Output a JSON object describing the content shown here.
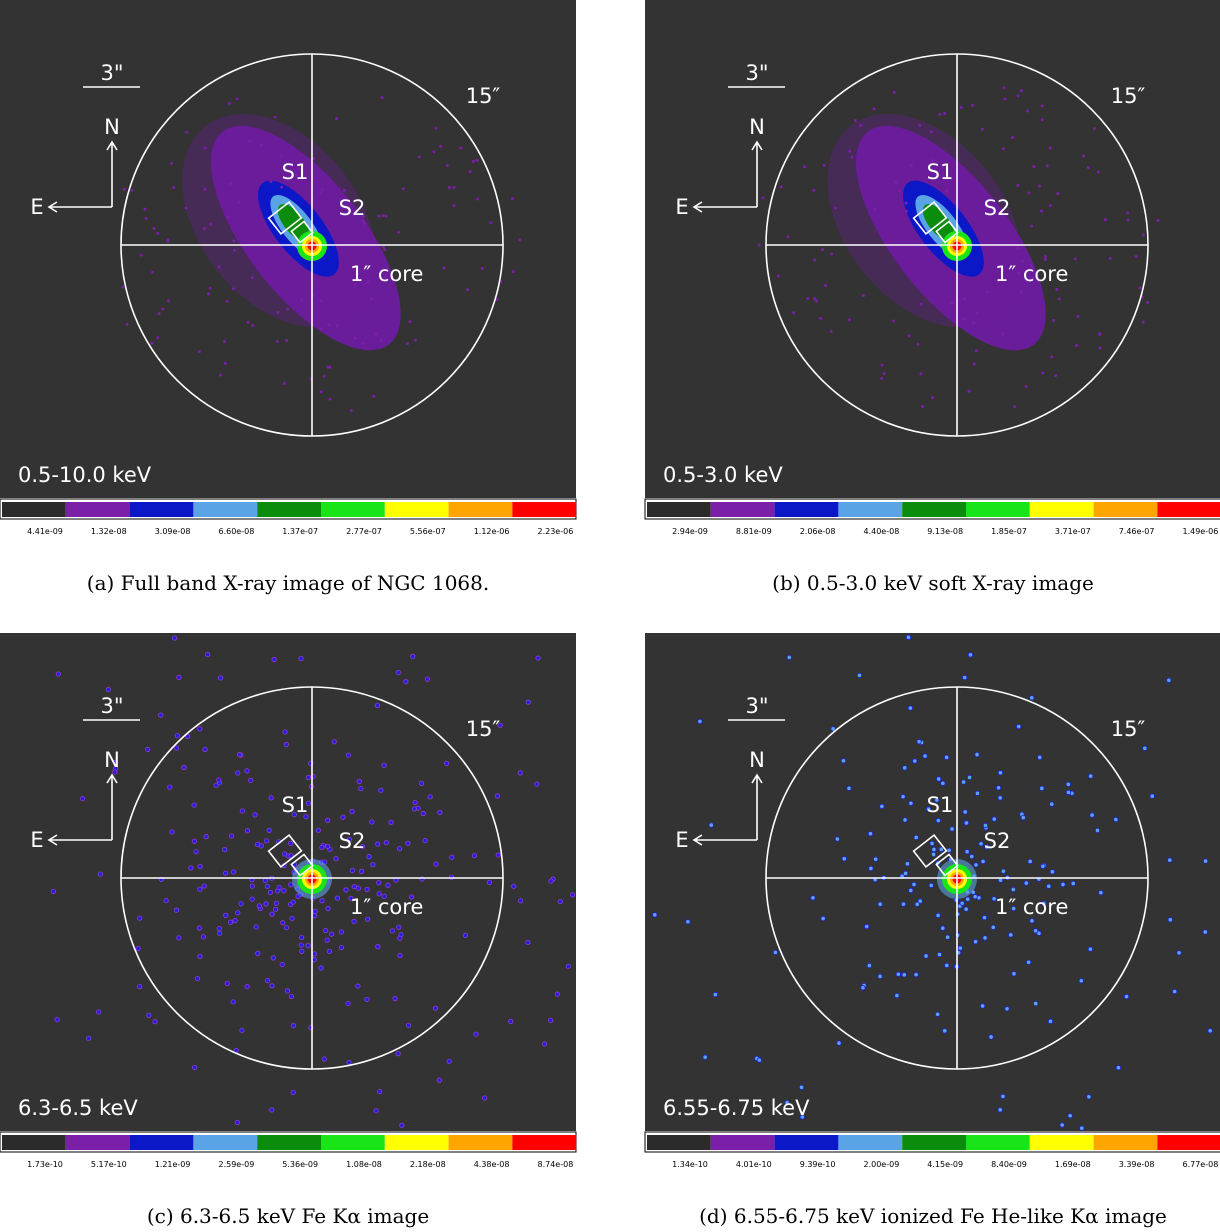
{
  "panels": [
    {
      "band": "0.5-10.0 keV",
      "scale_label": "3\"",
      "circle_label": "15″",
      "north": "N",
      "east": "E",
      "s1": "S1",
      "s2": "S2",
      "core": "1″ core",
      "colorbar_ticks": [
        "4.41e-09",
        "1.32e-08",
        "3.09e-08",
        "6.60e-08",
        "1.37e-07",
        "2.77e-07",
        "5.56e-07",
        "1.12e-06",
        "2.23e-06"
      ],
      "caption": "(a) Full band X-ray image of NGC 1068."
    },
    {
      "band": "0.5-3.0 keV",
      "scale_label": "3\"",
      "circle_label": "15″",
      "north": "N",
      "east": "E",
      "s1": "S1",
      "s2": "S2",
      "core": "1″ core",
      "colorbar_ticks": [
        "2.94e-09",
        "8.81e-09",
        "2.06e-08",
        "4.40e-08",
        "9.13e-08",
        "1.85e-07",
        "3.71e-07",
        "7.46e-07",
        "1.49e-06"
      ],
      "caption": "(b) 0.5-3.0 keV soft X-ray image"
    },
    {
      "band": "6.3-6.5 keV",
      "scale_label": "3\"",
      "circle_label": "15″",
      "north": "N",
      "east": "E",
      "s1": "S1",
      "s2": "S2",
      "core": "1″ core",
      "colorbar_ticks": [
        "1.73e-10",
        "5.17e-10",
        "1.21e-09",
        "2.59e-09",
        "5.36e-09",
        "1.08e-08",
        "2.18e-08",
        "4.38e-08",
        "8.74e-08"
      ],
      "caption": "(c) 6.3-6.5 keV Fe Kα image"
    },
    {
      "band": "6.55-6.75 keV",
      "scale_label": "3\"",
      "circle_label": "15″",
      "north": "N",
      "east": "E",
      "s1": "S1",
      "s2": "S2",
      "core": "1″ core",
      "colorbar_ticks": [
        "1.34e-10",
        "4.01e-10",
        "9.39e-10",
        "2.00e-09",
        "4.15e-09",
        "8.40e-09",
        "1.69e-08",
        "3.39e-08",
        "6.77e-08"
      ],
      "caption": "(d) 6.55-6.75 keV ionized Fe He-like Kα image"
    }
  ]
}
